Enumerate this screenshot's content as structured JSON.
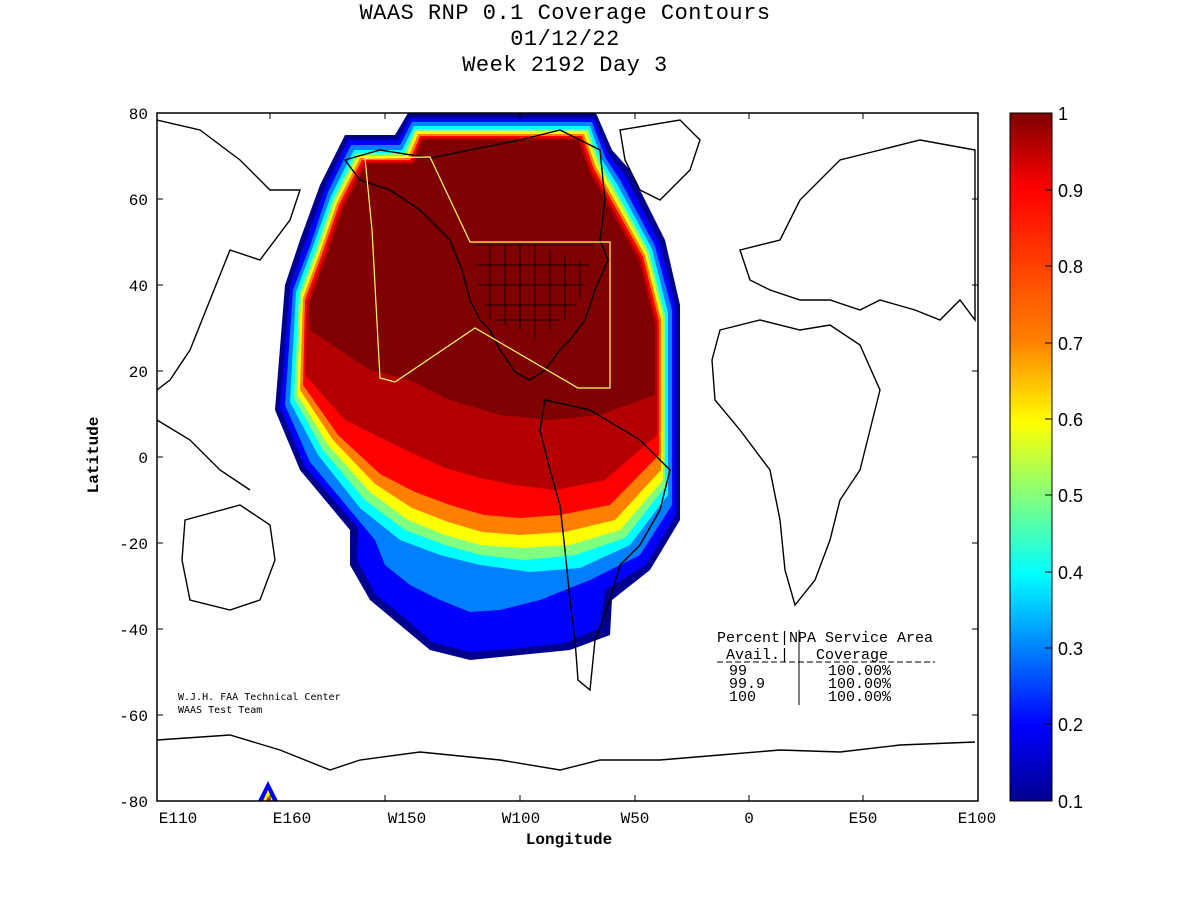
{
  "title": {
    "line1": "WAAS RNP 0.1 Coverage Contours",
    "line2": "01/12/22",
    "line3": "Week 2192 Day 3"
  },
  "axes": {
    "xlabel": "Longitude",
    "ylabel": "Latitude",
    "xticks": [
      "E110",
      "E160",
      "W150",
      "W100",
      "W50",
      "0",
      "E50",
      "E100"
    ],
    "yticks": [
      "80",
      "60",
      "40",
      "20",
      "0",
      "-20",
      "-40",
      "-60",
      "-80"
    ]
  },
  "colorbar": {
    "ticks": [
      "1",
      "0.9",
      "0.8",
      "0.7",
      "0.6",
      "0.5",
      "0.4",
      "0.3",
      "0.2",
      "0.1"
    ],
    "colors": [
      "#7f0000",
      "#ff0000",
      "#ff8000",
      "#ffff00",
      "#80ff80",
      "#00ffff",
      "#0080ff",
      "#0000ff",
      "#00008f"
    ]
  },
  "table": {
    "header1": "Percent|NPA Service Area",
    "header2": " Avail.|   Coverage    ",
    "rows": [
      {
        "avail": "99",
        "coverage": "100.00%"
      },
      {
        "avail": "99.9",
        "coverage": "100.00%"
      },
      {
        "avail": "100",
        "coverage": "100.00%"
      }
    ]
  },
  "credit": {
    "line1": "W.J.H. FAA Technical Center",
    "line2": "WAAS Test Team"
  }
}
